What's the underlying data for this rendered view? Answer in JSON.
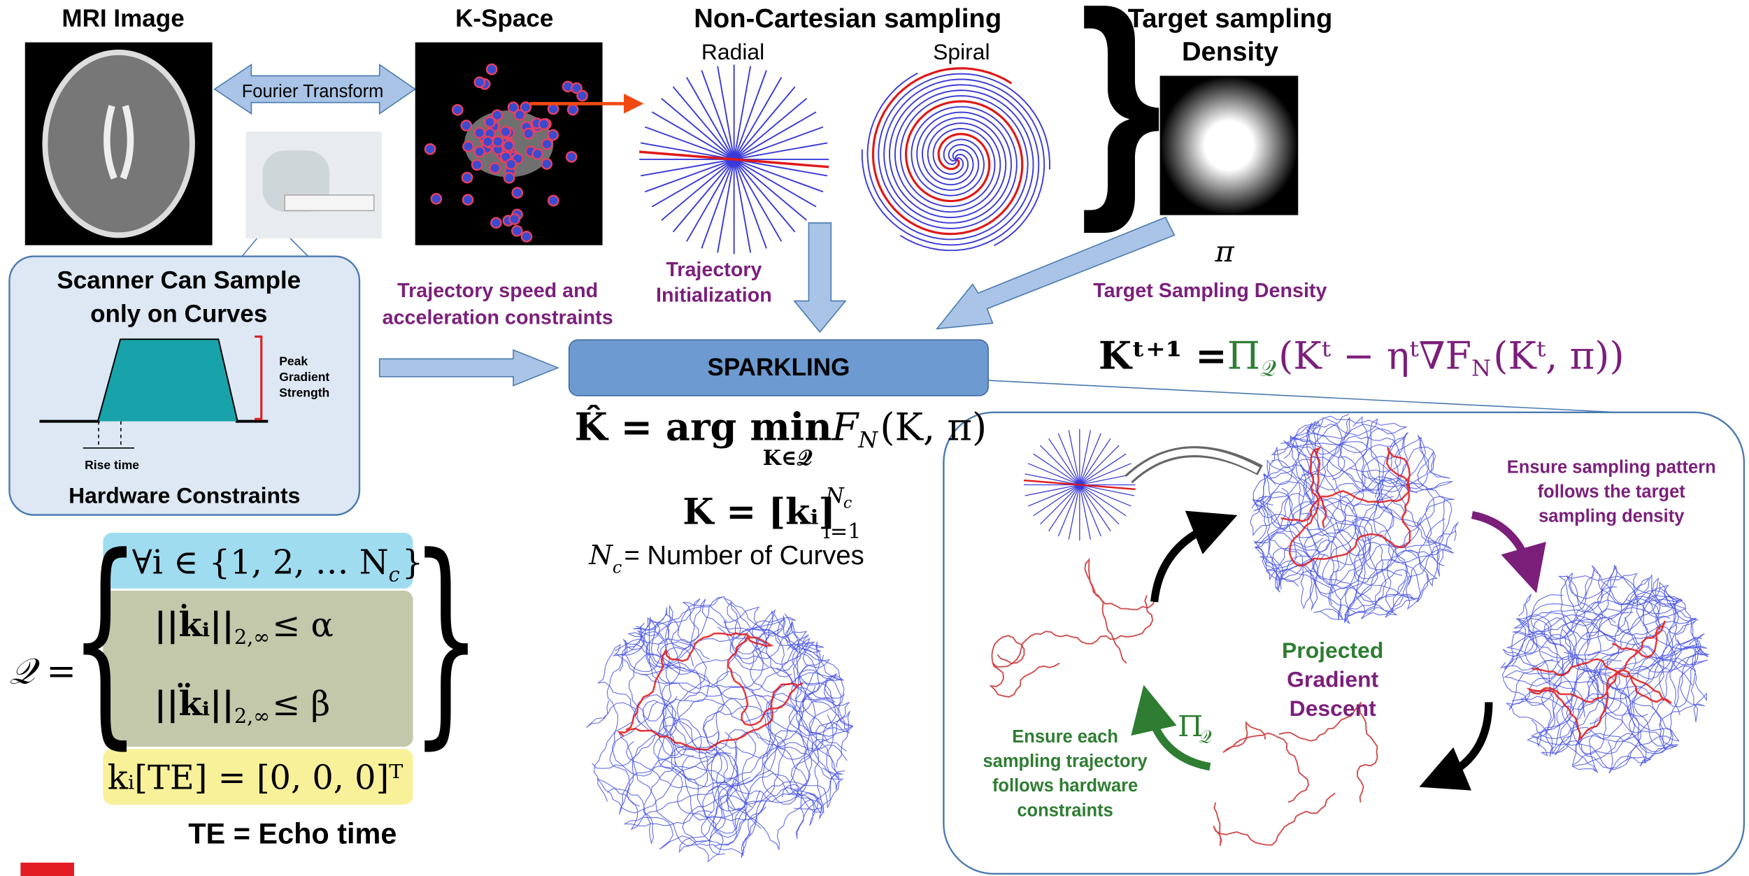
{
  "header": {
    "mri_image": "MRI Image",
    "k_space": "K-Space",
    "non_cartesian": "Non-Cartesian sampling",
    "radial": "Radial",
    "spiral": "Spiral",
    "target_density": [
      "Target sampling",
      "Density"
    ]
  },
  "fourier_transform": "Fourier Transform",
  "scanner": {
    "title": [
      "Scanner Can Sample",
      "only on Curves"
    ],
    "peak": [
      "Peak",
      "Gradient",
      "Strength"
    ],
    "rise_time": "Rise time",
    "footer": "Hardware Constraints"
  },
  "labels": {
    "speed": [
      "Trajectory speed and",
      "acceleration constraints"
    ],
    "init": [
      "Trajectory",
      "Initialization"
    ],
    "pi": "π",
    "target": "Target Sampling Density"
  },
  "sparkling": "SPARKLING",
  "formulas": {
    "argmin": {
      "lhs": "K̂ = arg min",
      "under": "K∈𝒬",
      "f": "F",
      "f_sub": "N",
      "args": " (K, π)"
    },
    "kdef": {
      "base": "K = [kᵢ]",
      "sub": "i=1",
      "sup": "N",
      "sup_sub": "c"
    },
    "curves": {
      "sym": "N",
      "sub": "c",
      "text": "= Number of Curves"
    },
    "update": {
      "lhs": "Kᵗ⁺¹ = ",
      "proj": "Π",
      "proj_sub": "𝒬",
      "body": "(Kᵗ − ηᵗ∇F",
      "body_sub": "N",
      "tail": "(Kᵗ, π))"
    },
    "q_set": {
      "lhs": "𝒬 =",
      "row1": "∀i ∈ {1, 2, … N",
      "row1_sub": "c",
      "row1_end": "}",
      "row2": "||k̇ᵢ||",
      "row2_sub": "2,∞",
      "row2_end": " ≤ α",
      "row3": "||k̈ᵢ||",
      "row3_sub": "2,∞",
      "row3_end": " ≤ β",
      "row4": "kᵢ[TE] = [0, 0, 0]ᵀ"
    },
    "te": "TE = Echo time"
  },
  "loop": {
    "follow_density": [
      "Ensure sampling pattern",
      "follows the target",
      "sampling density"
    ],
    "pgd": [
      "Projected",
      "Gradient",
      "Descent"
    ],
    "proj": "Π",
    "proj_sub": "𝒬",
    "hardware": [
      "Ensure each",
      "sampling trajectory",
      "follows hardware",
      "constraints"
    ]
  }
}
